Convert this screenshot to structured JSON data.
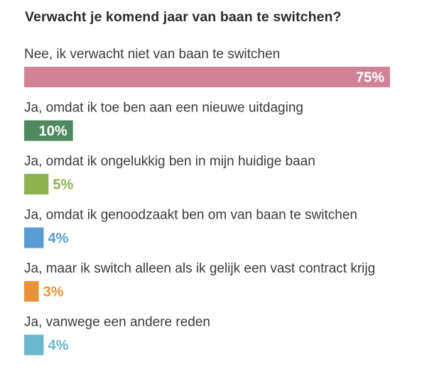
{
  "chart_data": {
    "type": "bar",
    "orientation": "horizontal",
    "title": "Verwacht je komend jaar van baan te switchen?",
    "categories": [
      "Nee, ik verwacht niet van baan te switchen",
      "Ja, omdat ik toe ben aan een nieuwe uitdaging",
      "Ja, omdat ik ongelukkig ben in mijn huidige baan",
      "Ja, omdat ik genoodzaakt ben om van baan te switchen",
      "Ja, maar ik switch alleen als ik gelijk een vast contract krijg",
      "Ja, vanwege een andere reden"
    ],
    "values": [
      75,
      10,
      5,
      4,
      3,
      4
    ],
    "value_labels": [
      "75%",
      "10%",
      "5%",
      "4%",
      "3%",
      "4%"
    ],
    "colors": [
      "#d08397",
      "#4f8a5f",
      "#8db24f",
      "#5b9bd5",
      "#e8923a",
      "#6bb8cc"
    ],
    "unit": "%",
    "xlim": [
      0,
      75
    ],
    "grid": false,
    "legend": "none"
  }
}
